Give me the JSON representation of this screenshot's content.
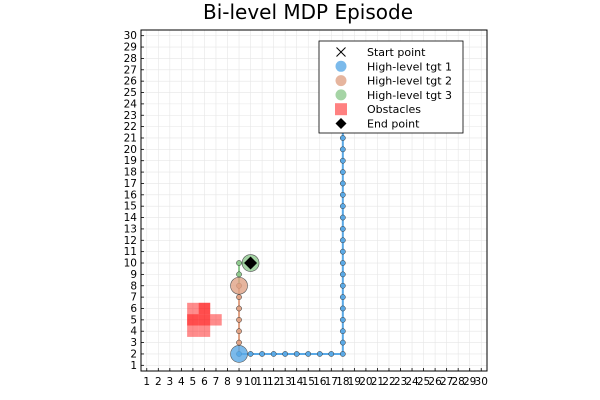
{
  "chart_data": {
    "type": "scatter",
    "title": "Bi-level MDP Episode",
    "xlabel": "",
    "ylabel": "",
    "xlim": [
      0.5,
      30.5
    ],
    "ylim": [
      0.5,
      30.5
    ],
    "xticks": [
      1,
      2,
      3,
      4,
      5,
      6,
      7,
      8,
      9,
      10,
      11,
      12,
      13,
      14,
      15,
      16,
      17,
      18,
      19,
      20,
      21,
      22,
      23,
      24,
      25,
      26,
      27,
      28,
      29,
      30
    ],
    "yticks": [
      1,
      2,
      3,
      4,
      5,
      6,
      7,
      8,
      9,
      10,
      11,
      12,
      13,
      14,
      15,
      16,
      17,
      18,
      19,
      20,
      21,
      22,
      23,
      24,
      25,
      26,
      27,
      28,
      29,
      30
    ],
    "grid": true,
    "legend_position": "top-right",
    "colors": {
      "tgt1": "#5aa9e6",
      "tgt2": "#e0a386",
      "tgt3": "#8ec98e",
      "obstacle": "#ff0000",
      "end": "#000000",
      "start": "#000000"
    },
    "legend": [
      {
        "label": "Start point",
        "marker": "x-icon"
      },
      {
        "label": "High-level tgt 1",
        "marker": "circle-icon",
        "color": "#5aa9e6"
      },
      {
        "label": "High-level tgt 2",
        "marker": "circle-icon",
        "color": "#e0a386"
      },
      {
        "label": "High-level tgt 3",
        "marker": "circle-icon",
        "color": "#8ec98e"
      },
      {
        "label": "Obstacles",
        "marker": "square-icon",
        "color": "#ff6b6b"
      },
      {
        "label": "End point",
        "marker": "diamond-icon",
        "color": "#000000"
      }
    ],
    "start_point": {
      "x": 18,
      "y": 22
    },
    "end_point": {
      "x": 10,
      "y": 10
    },
    "path": [
      {
        "x": 18,
        "y": 22
      },
      {
        "x": 18,
        "y": 21
      },
      {
        "x": 18,
        "y": 20
      },
      {
        "x": 18,
        "y": 19
      },
      {
        "x": 18,
        "y": 18
      },
      {
        "x": 18,
        "y": 17
      },
      {
        "x": 18,
        "y": 16
      },
      {
        "x": 18,
        "y": 15
      },
      {
        "x": 18,
        "y": 14
      },
      {
        "x": 18,
        "y": 13
      },
      {
        "x": 18,
        "y": 12
      },
      {
        "x": 18,
        "y": 11
      },
      {
        "x": 18,
        "y": 10
      },
      {
        "x": 18,
        "y": 9
      },
      {
        "x": 18,
        "y": 8
      },
      {
        "x": 18,
        "y": 7
      },
      {
        "x": 18,
        "y": 6
      },
      {
        "x": 18,
        "y": 5
      },
      {
        "x": 18,
        "y": 4
      },
      {
        "x": 18,
        "y": 3
      },
      {
        "x": 18,
        "y": 2
      },
      {
        "x": 17,
        "y": 2
      },
      {
        "x": 16,
        "y": 2
      },
      {
        "x": 15,
        "y": 2
      },
      {
        "x": 14,
        "y": 2
      },
      {
        "x": 13,
        "y": 2
      },
      {
        "x": 12,
        "y": 2
      },
      {
        "x": 11,
        "y": 2
      },
      {
        "x": 10,
        "y": 2
      },
      {
        "x": 9,
        "y": 2
      },
      {
        "x": 9,
        "y": 3
      },
      {
        "x": 9,
        "y": 4
      },
      {
        "x": 9,
        "y": 5
      },
      {
        "x": 9,
        "y": 6
      },
      {
        "x": 9,
        "y": 7
      },
      {
        "x": 9,
        "y": 8
      },
      {
        "x": 9,
        "y": 9
      },
      {
        "x": 9,
        "y": 10
      },
      {
        "x": 10,
        "y": 10
      }
    ],
    "series": [
      {
        "name": "High-level tgt 1",
        "color": "#5aa9e6",
        "points": [
          {
            "x": 18,
            "y": 21
          },
          {
            "x": 18,
            "y": 20
          },
          {
            "x": 18,
            "y": 19
          },
          {
            "x": 18,
            "y": 18
          },
          {
            "x": 18,
            "y": 17
          },
          {
            "x": 18,
            "y": 16
          },
          {
            "x": 18,
            "y": 15
          },
          {
            "x": 18,
            "y": 14
          },
          {
            "x": 18,
            "y": 13
          },
          {
            "x": 18,
            "y": 12
          },
          {
            "x": 18,
            "y": 11
          },
          {
            "x": 18,
            "y": 10
          },
          {
            "x": 18,
            "y": 9
          },
          {
            "x": 18,
            "y": 8
          },
          {
            "x": 18,
            "y": 7
          },
          {
            "x": 18,
            "y": 6
          },
          {
            "x": 18,
            "y": 5
          },
          {
            "x": 18,
            "y": 4
          },
          {
            "x": 18,
            "y": 3
          },
          {
            "x": 18,
            "y": 2
          },
          {
            "x": 17,
            "y": 2
          },
          {
            "x": 16,
            "y": 2
          },
          {
            "x": 15,
            "y": 2
          },
          {
            "x": 14,
            "y": 2
          },
          {
            "x": 13,
            "y": 2
          },
          {
            "x": 12,
            "y": 2
          },
          {
            "x": 11,
            "y": 2
          },
          {
            "x": 10,
            "y": 2
          },
          {
            "x": 9,
            "y": 2
          }
        ],
        "target": {
          "x": 9,
          "y": 2
        }
      },
      {
        "name": "High-level tgt 2",
        "color": "#e0a386",
        "points": [
          {
            "x": 9,
            "y": 3
          },
          {
            "x": 9,
            "y": 4
          },
          {
            "x": 9,
            "y": 5
          },
          {
            "x": 9,
            "y": 6
          },
          {
            "x": 9,
            "y": 7
          },
          {
            "x": 9,
            "y": 8
          }
        ],
        "target": {
          "x": 9,
          "y": 8
        }
      },
      {
        "name": "High-level tgt 3",
        "color": "#8ec98e",
        "points": [
          {
            "x": 9,
            "y": 9
          },
          {
            "x": 9,
            "y": 10
          },
          {
            "x": 10,
            "y": 10
          }
        ],
        "target": {
          "x": 10,
          "y": 10
        }
      }
    ],
    "obstacles": [
      {
        "x": 5,
        "y": 6
      },
      {
        "x": 6,
        "y": 6
      },
      {
        "x": 5,
        "y": 5
      },
      {
        "x": 6,
        "y": 5
      },
      {
        "x": 6,
        "y": 5
      },
      {
        "x": 7,
        "y": 5
      },
      {
        "x": 5,
        "y": 5
      },
      {
        "x": 6,
        "y": 6
      },
      {
        "x": 6,
        "y": 4
      },
      {
        "x": 5,
        "y": 4
      }
    ]
  }
}
